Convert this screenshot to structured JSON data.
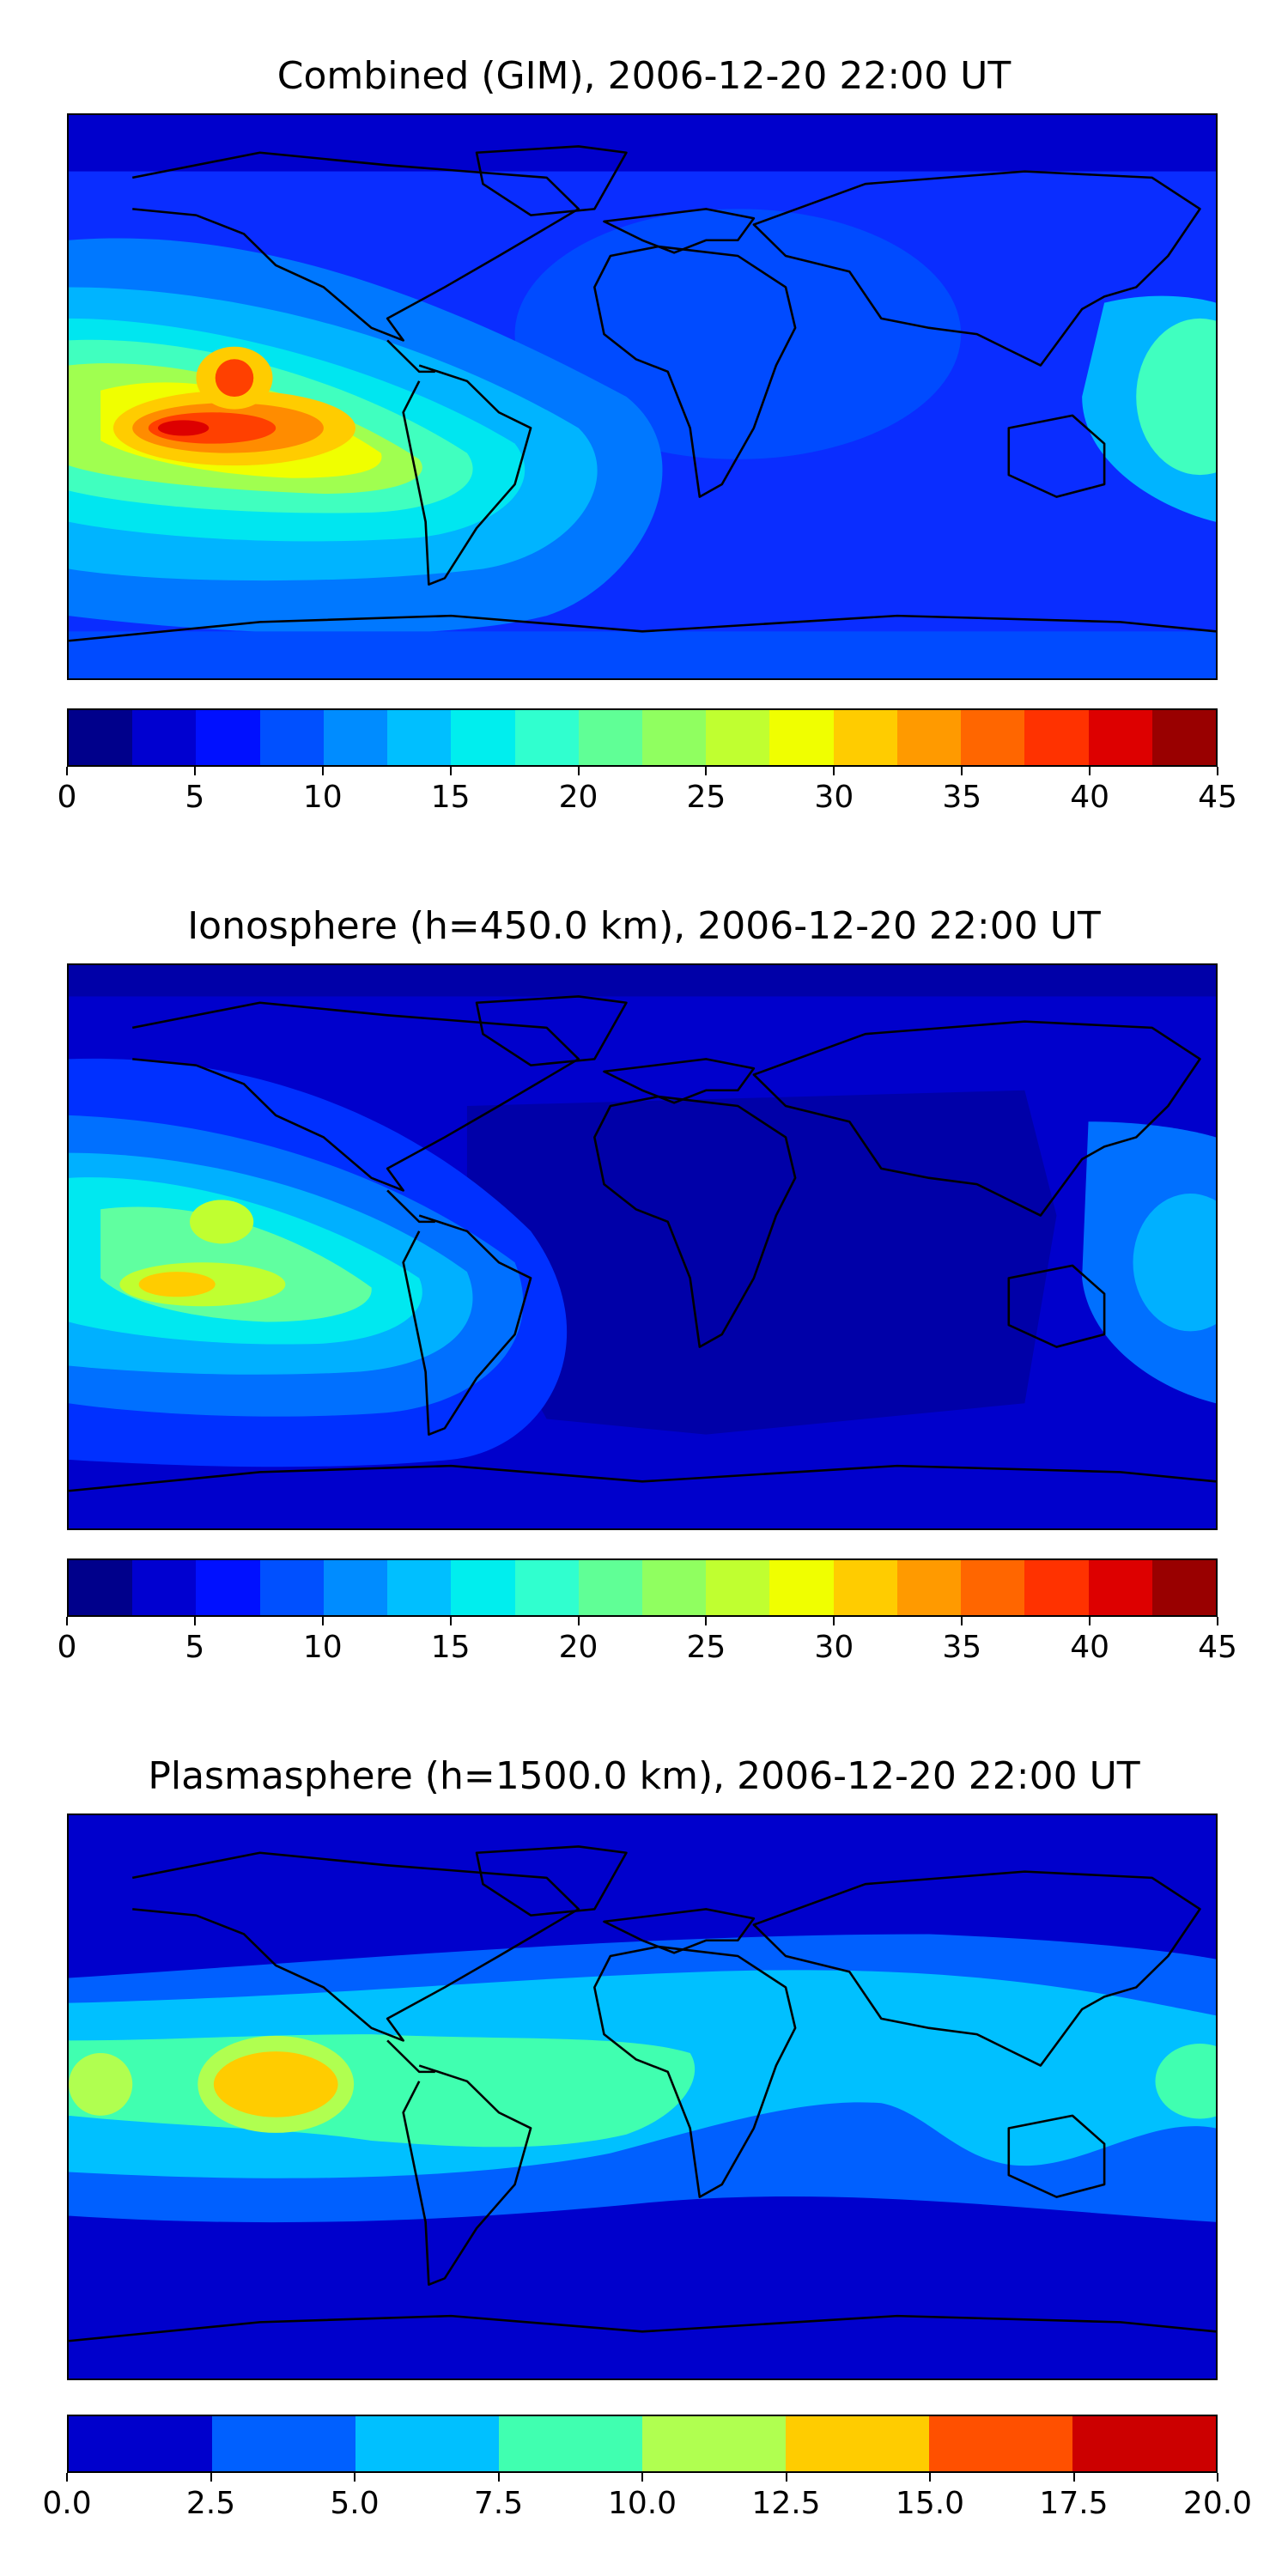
{
  "panels": [
    {
      "title": "Combined (GIM), 2006-12-20 22:00 UT",
      "colorbar": {
        "ticks": [
          "0",
          "5",
          "10",
          "15",
          "20",
          "25",
          "30",
          "35",
          "40",
          "45"
        ],
        "levels": 18,
        "colors": [
          "#00008b",
          "#0000d0",
          "#0010ff",
          "#0050ff",
          "#008cff",
          "#00bfff",
          "#00eeee",
          "#30ffcf",
          "#60ff96",
          "#90ff60",
          "#c0ff30",
          "#f0ff00",
          "#ffcc00",
          "#ff9a00",
          "#ff6600",
          "#ff3200",
          "#dd0000",
          "#990000"
        ]
      },
      "field_colors": {
        "background": "#0a2dff",
        "lowlat": "#004bff",
        "band1": "#0078ff",
        "band2": "#00b4ff",
        "band3": "#00e6f0",
        "band4": "#40ffbf",
        "band5": "#a0ff50",
        "band6": "#f0ff00",
        "band7": "#ffcc00",
        "band8": "#ff8c00",
        "band9": "#ff4000",
        "band10": "#dd0000",
        "polar": "#0000cc"
      }
    },
    {
      "title": "Ionosphere  (h=450.0 km), 2006-12-20 22:00 UT",
      "colorbar": {
        "ticks": [
          "0",
          "5",
          "10",
          "15",
          "20",
          "25",
          "30",
          "35",
          "40",
          "45"
        ],
        "levels": 18,
        "colors": [
          "#00008b",
          "#0000d0",
          "#0010ff",
          "#0050ff",
          "#008cff",
          "#00bfff",
          "#00eeee",
          "#30ffcf",
          "#60ff96",
          "#90ff60",
          "#c0ff30",
          "#f0ff00",
          "#ffcc00",
          "#ff9a00",
          "#ff6600",
          "#ff3200",
          "#dd0000",
          "#990000"
        ]
      },
      "field_colors": {
        "background": "#0000cc",
        "dark": "#0000a8",
        "band1": "#0030ff",
        "band2": "#0070ff",
        "band3": "#00b0ff",
        "band4": "#00e8f0",
        "band5": "#60ffa0",
        "band6": "#c0ff30",
        "band7": "#ffcc00"
      }
    },
    {
      "title": "Plasmasphere (h=1500.0 km), 2006-12-20 22:00 UT",
      "colorbar": {
        "ticks": [
          "0.0",
          "2.5",
          "5.0",
          "7.5",
          "10.0",
          "12.5",
          "15.0",
          "17.5",
          "20.0"
        ],
        "levels": 8,
        "colors": [
          "#0000cc",
          "#0060ff",
          "#00c0ff",
          "#40ffb0",
          "#b0ff50",
          "#ffcc00",
          "#ff5000",
          "#cc0000"
        ]
      },
      "field_colors": {
        "low": "#0000cc",
        "mid": "#0060ff",
        "band": "#00c0ff",
        "green": "#40ffb0",
        "peak": "#ffcc00"
      }
    }
  ]
}
